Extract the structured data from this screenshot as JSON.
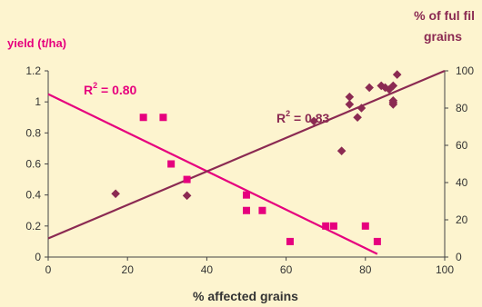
{
  "chart_data": {
    "type": "scatter",
    "xlabel": "% affected grains",
    "ylabel_left": "yield (t/ha)",
    "ylabel_right_lines": [
      "% of ful fil",
      "grains"
    ],
    "xlim": [
      0,
      100
    ],
    "ylim_left": [
      0,
      1.2
    ],
    "ylim_right": [
      0,
      100
    ],
    "x_ticks": [
      "0",
      "20",
      "40",
      "60",
      "80",
      "100"
    ],
    "y_left_ticks": [
      "0",
      "0.2",
      "0.4",
      "0.6",
      "0.8",
      "1",
      "1.2"
    ],
    "y_right_ticks": [
      "0",
      "20",
      "40",
      "60",
      "80",
      "100"
    ],
    "grid": false,
    "series": [
      {
        "axis": "left",
        "marker": "square",
        "color": "#e6007e",
        "x": [
          24,
          29,
          31,
          35,
          50,
          50,
          54,
          61,
          70,
          72,
          80,
          83
        ],
        "y": [
          0.9,
          0.9,
          0.6,
          0.5,
          0.4,
          0.3,
          0.3,
          0.1,
          0.2,
          0.2,
          0.2,
          0.1
        ],
        "trend": {
          "x": [
            0,
            83
          ],
          "y": [
            1.05,
            0.02
          ],
          "r2_prefix": "R",
          "r2_sup": "2",
          "r2_value": " = 0.80"
        }
      },
      {
        "axis": "right",
        "marker": "diamond",
        "color": "#8b2a52",
        "x": [
          17,
          35,
          67,
          74,
          76,
          76,
          78,
          79,
          81,
          84,
          85,
          86,
          87,
          87,
          87,
          87,
          88
        ],
        "y": [
          34,
          33,
          73,
          57,
          82,
          86,
          75,
          80,
          91,
          92,
          91,
          90,
          82,
          83,
          84,
          92,
          98
        ],
        "trend": {
          "x": [
            0,
            100
          ],
          "y": [
            10,
            100
          ],
          "r2_prefix": "R",
          "r2_sup": "2",
          "r2_value": " = 0.83"
        }
      }
    ]
  }
}
